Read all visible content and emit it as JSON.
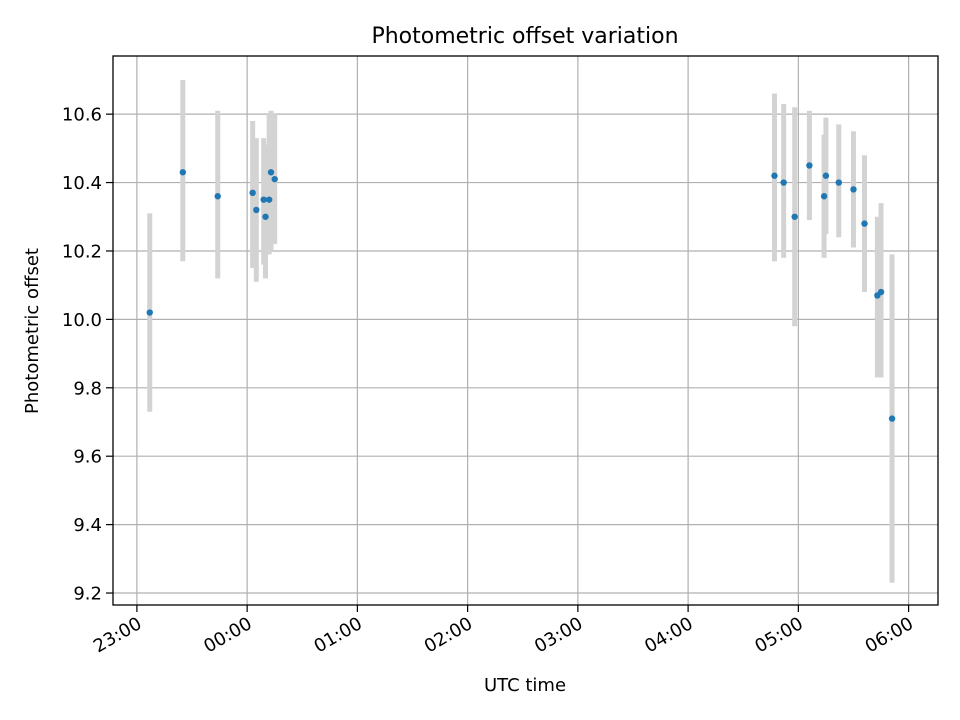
{
  "chart_data": {
    "type": "scatter",
    "title": "Photometric offset variation",
    "xlabel": "UTC time",
    "ylabel": "Photometric offset",
    "x_unit": "UTC time (HH:MM)",
    "xlim": [
      "22:47",
      "06:16"
    ],
    "ylim": [
      9.165,
      10.77
    ],
    "x_ticks": [
      "23:00",
      "00:00",
      "01:00",
      "02:00",
      "03:00",
      "04:00",
      "05:00",
      "06:00"
    ],
    "y_ticks": [
      9.2,
      9.4,
      9.6,
      9.8,
      10.0,
      10.2,
      10.4,
      10.6
    ],
    "y_tick_labels": [
      "9.2",
      "9.4",
      "9.6",
      "9.8",
      "10.0",
      "10.2",
      "10.4",
      "10.6"
    ],
    "grid": true,
    "colors": {
      "point": "#1f77b4",
      "errorbar": "#d3d3d3",
      "grid": "#b0b0b0"
    },
    "series": [
      {
        "points": [
          {
            "x": "23:07",
            "y": 10.02,
            "lo": 9.73,
            "hi": 10.31
          },
          {
            "x": "23:25",
            "y": 10.43,
            "lo": 10.17,
            "hi": 10.7
          },
          {
            "x": "23:44",
            "y": 10.36,
            "lo": 10.12,
            "hi": 10.61
          },
          {
            "x": "00:03",
            "y": 10.37,
            "lo": 10.15,
            "hi": 10.58
          },
          {
            "x": "00:05",
            "y": 10.32,
            "lo": 10.11,
            "hi": 10.53
          },
          {
            "x": "00:09",
            "y": 10.35,
            "lo": 10.16,
            "hi": 10.53
          },
          {
            "x": "00:10",
            "y": 10.3,
            "lo": 10.12,
            "hi": 10.51
          },
          {
            "x": "00:12",
            "y": 10.35,
            "lo": 10.19,
            "hi": 10.6
          },
          {
            "x": "00:13",
            "y": 10.43,
            "lo": 10.2,
            "hi": 10.61
          },
          {
            "x": "00:15",
            "y": 10.41,
            "lo": 10.22,
            "hi": 10.6
          },
          {
            "x": "04:47",
            "y": 10.42,
            "lo": 10.17,
            "hi": 10.66
          },
          {
            "x": "04:52",
            "y": 10.4,
            "lo": 10.18,
            "hi": 10.63
          },
          {
            "x": "04:58",
            "y": 10.3,
            "lo": 9.98,
            "hi": 10.62
          },
          {
            "x": "05:06",
            "y": 10.45,
            "lo": 10.29,
            "hi": 10.61
          },
          {
            "x": "05:14",
            "y": 10.36,
            "lo": 10.18,
            "hi": 10.54
          },
          {
            "x": "05:15",
            "y": 10.42,
            "lo": 10.25,
            "hi": 10.59
          },
          {
            "x": "05:22",
            "y": 10.4,
            "lo": 10.24,
            "hi": 10.57
          },
          {
            "x": "05:30",
            "y": 10.38,
            "lo": 10.21,
            "hi": 10.55
          },
          {
            "x": "05:36",
            "y": 10.28,
            "lo": 10.08,
            "hi": 10.48
          },
          {
            "x": "05:43",
            "y": 10.07,
            "lo": 9.83,
            "hi": 10.3
          },
          {
            "x": "05:45",
            "y": 10.08,
            "lo": 9.83,
            "hi": 10.34
          },
          {
            "x": "05:51",
            "y": 9.71,
            "lo": 9.23,
            "hi": 10.19
          }
        ]
      }
    ]
  }
}
